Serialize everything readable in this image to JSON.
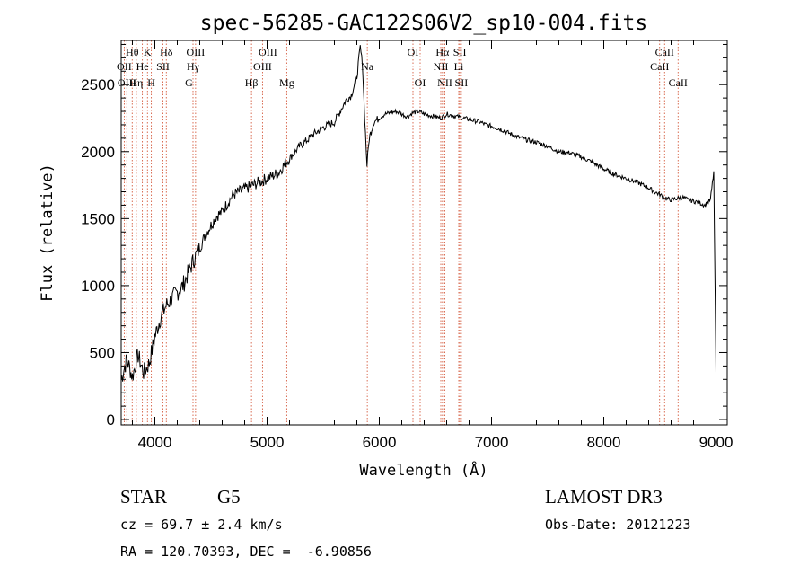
{
  "chart_data": {
    "type": "line",
    "title": "spec-56285-GAC122S06V2_sp10-004.fits",
    "xlabel": "Wavelength (Å)",
    "ylabel": "Flux (relative)",
    "xlim": [
      3700,
      9100
    ],
    "ylim": [
      -40,
      2830
    ],
    "x_ticks": [
      4000,
      5000,
      6000,
      7000,
      8000,
      9000
    ],
    "y_ticks": [
      0,
      500,
      1000,
      1500,
      2000,
      2500
    ],
    "x_tick_labels": [
      "4000",
      "5000",
      "6000",
      "7000",
      "8000",
      "9000"
    ],
    "y_tick_labels": [
      "0",
      "500",
      "1000",
      "1500",
      "2000",
      "2500"
    ],
    "series": [
      {
        "name": "flux",
        "x": [
          3700,
          3750,
          3800,
          3850,
          3900,
          3950,
          4000,
          4050,
          4100,
          4150,
          4200,
          4250,
          4300,
          4350,
          4400,
          4450,
          4500,
          4550,
          4600,
          4650,
          4700,
          4750,
          4800,
          4850,
          4900,
          4950,
          5000,
          5050,
          5100,
          5150,
          5200,
          5250,
          5300,
          5350,
          5400,
          5450,
          5500,
          5550,
          5600,
          5650,
          5700,
          5750,
          5800,
          5830,
          5850,
          5870,
          5890,
          5910,
          5950,
          6000,
          6050,
          6100,
          6150,
          6200,
          6250,
          6300,
          6350,
          6400,
          6450,
          6500,
          6550,
          6600,
          6650,
          6700,
          6750,
          6800,
          6850,
          6900,
          6950,
          7000,
          7100,
          7200,
          7300,
          7400,
          7500,
          7600,
          7700,
          7800,
          7900,
          8000,
          8100,
          8200,
          8300,
          8400,
          8450,
          8500,
          8550,
          8600,
          8650,
          8700,
          8750,
          8800,
          8850,
          8900,
          8950,
          8980,
          9000
        ],
        "y": [
          300,
          450,
          320,
          480,
          350,
          420,
          620,
          760,
          850,
          900,
          950,
          1000,
          1100,
          1200,
          1280,
          1380,
          1450,
          1520,
          1550,
          1620,
          1680,
          1700,
          1720,
          1740,
          1760,
          1780,
          1800,
          1820,
          1840,
          1900,
          1950,
          2000,
          2050,
          2080,
          2120,
          2150,
          2180,
          2200,
          2220,
          2300,
          2380,
          2420,
          2560,
          2780,
          2650,
          2250,
          1900,
          2100,
          2220,
          2250,
          2280,
          2290,
          2300,
          2280,
          2260,
          2290,
          2300,
          2280,
          2270,
          2260,
          2250,
          2280,
          2270,
          2260,
          2250,
          2240,
          2230,
          2220,
          2200,
          2190,
          2160,
          2120,
          2090,
          2070,
          2040,
          2000,
          1990,
          1960,
          1920,
          1870,
          1830,
          1800,
          1770,
          1730,
          1700,
          1680,
          1650,
          1640,
          1650,
          1660,
          1640,
          1630,
          1620,
          1600,
          1640,
          1850,
          350
        ]
      }
    ],
    "spectral_lines": [
      {
        "label": "Hθ",
        "wavelength": 3798,
        "row": 1
      },
      {
        "label": "OII",
        "wavelength": 3727,
        "row": 2
      },
      {
        "label": "OIII",
        "wavelength": 3750,
        "row": 3
      },
      {
        "label": "He",
        "wavelength": 3889,
        "row": 2
      },
      {
        "label": "Hη",
        "wavelength": 3835,
        "row": 3
      },
      {
        "label": "K",
        "wavelength": 3934,
        "row": 1
      },
      {
        "label": "SII",
        "wavelength": 4072,
        "row": 2
      },
      {
        "label": "H",
        "wavelength": 3969,
        "row": 3
      },
      {
        "label": "Hδ",
        "wavelength": 4102,
        "row": 1
      },
      {
        "label": "OIII",
        "wavelength": 4363,
        "row": 1
      },
      {
        "label": "Hγ",
        "wavelength": 4340,
        "row": 2
      },
      {
        "label": "G",
        "wavelength": 4304,
        "row": 3
      },
      {
        "label": "Hβ",
        "wavelength": 4861,
        "row": 3
      },
      {
        "label": "OIII",
        "wavelength": 4959,
        "row": 2
      },
      {
        "label": "OIII",
        "wavelength": 5007,
        "row": 1
      },
      {
        "label": "Mg",
        "wavelength": 5175,
        "row": 3
      },
      {
        "label": "Na",
        "wavelength": 5893,
        "row": 2
      },
      {
        "label": "OI",
        "wavelength": 6300,
        "row": 1
      },
      {
        "label": "OI",
        "wavelength": 6364,
        "row": 3
      },
      {
        "label": "Hα",
        "wavelength": 6563,
        "row": 1
      },
      {
        "label": "NII",
        "wavelength": 6548,
        "row": 2
      },
      {
        "label": "NII",
        "wavelength": 6584,
        "row": 3
      },
      {
        "label": "SII",
        "wavelength": 6717,
        "row": 1
      },
      {
        "label": "Li",
        "wavelength": 6708,
        "row": 2
      },
      {
        "label": "SII",
        "wavelength": 6731,
        "row": 3
      },
      {
        "label": "CaII",
        "wavelength": 8542,
        "row": 1
      },
      {
        "label": "CaII",
        "wavelength": 8498,
        "row": 2
      },
      {
        "label": "CaII",
        "wavelength": 8662,
        "row": 3
      }
    ]
  },
  "info": {
    "object_class": "STAR",
    "subclass": "G5",
    "survey": "LAMOST DR3",
    "redshift_line": "cz = 69.7 ± 2.4 km/s",
    "obs_date_line": "Obs-Date: 20121223",
    "coords_line": "RA = 120.70393, DEC =  -6.90856"
  }
}
